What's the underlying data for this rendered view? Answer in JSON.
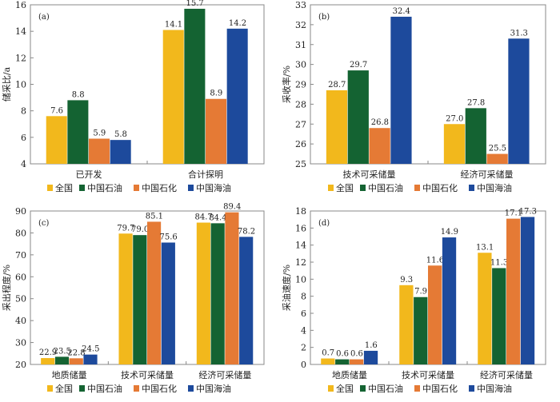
{
  "colors": [
    "#F2B81C",
    "#146332",
    "#E57A35",
    "#1D4A9C"
  ],
  "legend": [
    "全国",
    "中国石油",
    "中国石化",
    "中国海油"
  ],
  "chart_data": [
    {
      "type": "bar",
      "panel": "(a)",
      "ylabel": "储采比/a",
      "ylim": [
        4,
        16
      ],
      "yticks": [
        4,
        6,
        8,
        10,
        12,
        14,
        16
      ],
      "categories": [
        "已开发",
        "合计探明"
      ],
      "series": [
        {
          "name": "全国",
          "values": [
            7.6,
            14.1
          ]
        },
        {
          "name": "中国石油",
          "values": [
            8.8,
            15.7
          ]
        },
        {
          "name": "中国石化",
          "values": [
            5.9,
            8.9
          ]
        },
        {
          "name": "中国海油",
          "values": [
            5.8,
            14.2
          ]
        }
      ],
      "legend": "bottom"
    },
    {
      "type": "bar",
      "panel": "(b)",
      "ylabel": "采收率/%",
      "ylim": [
        25,
        33
      ],
      "yticks": [
        25,
        26,
        27,
        28,
        29,
        30,
        31,
        32,
        33
      ],
      "categories": [
        "技术可采储量",
        "经济可采储量"
      ],
      "series": [
        {
          "name": "全国",
          "values": [
            28.7,
            27.0
          ]
        },
        {
          "name": "中国石油",
          "values": [
            29.7,
            27.8
          ]
        },
        {
          "name": "中国石化",
          "values": [
            26.8,
            25.5
          ]
        },
        {
          "name": "中国海油",
          "values": [
            32.4,
            31.3
          ]
        }
      ],
      "legend": "bottom"
    },
    {
      "type": "bar",
      "panel": "(c)",
      "ylabel": "采出程度/%",
      "ylim": [
        20,
        90
      ],
      "yticks": [
        20,
        30,
        40,
        50,
        60,
        70,
        80,
        90
      ],
      "categories": [
        "地质储量",
        "技术可采储量",
        "经济可采储量"
      ],
      "series": [
        {
          "name": "全国",
          "values": [
            22.9,
            79.7,
            84.7
          ]
        },
        {
          "name": "中国石油",
          "values": [
            23.5,
            79.0,
            84.4
          ]
        },
        {
          "name": "中国石化",
          "values": [
            22.8,
            85.1,
            89.4
          ]
        },
        {
          "name": "中国海油",
          "values": [
            24.5,
            75.6,
            78.2
          ]
        }
      ],
      "legend": "bottom"
    },
    {
      "type": "bar",
      "panel": "(d)",
      "ylabel": "采油速度/%",
      "ylim": [
        0,
        18
      ],
      "yticks": [
        0,
        2,
        4,
        6,
        8,
        10,
        12,
        14,
        16,
        18
      ],
      "categories": [
        "地质储量",
        "技术可采储量",
        "经济可采储量"
      ],
      "series": [
        {
          "name": "全国",
          "values": [
            0.7,
            9.3,
            13.1
          ]
        },
        {
          "name": "中国石油",
          "values": [
            0.6,
            7.9,
            11.3
          ]
        },
        {
          "name": "中国石化",
          "values": [
            0.6,
            11.6,
            17.1
          ]
        },
        {
          "name": "中国海油",
          "values": [
            1.6,
            14.9,
            17.3
          ]
        }
      ],
      "legend": "bottom"
    }
  ]
}
